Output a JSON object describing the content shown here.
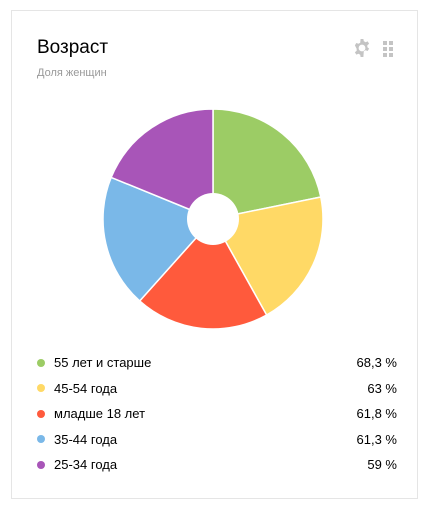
{
  "widget": {
    "title": "Возраст",
    "subtitle": "Доля женщин",
    "icons": {
      "settings": "gear-icon",
      "drag": "drag-handle-icon"
    },
    "icon_color": "#c4c4c4"
  },
  "chart_data": {
    "type": "pie",
    "style": "donut",
    "start_angle_deg": 0,
    "direction": "clockwise",
    "slices": [
      {
        "label": "55 лет и старше",
        "value": 68.3,
        "display": "68,3 %",
        "color": "#9ccc65"
      },
      {
        "label": "45-54 года",
        "value": 63,
        "display": "63 %",
        "color": "#ffd966"
      },
      {
        "label": "младше 18 лет",
        "value": 61.8,
        "display": "61,8 %",
        "color": "#ff5a3c"
      },
      {
        "label": "35-44 года",
        "value": 61.3,
        "display": "61,3 %",
        "color": "#7ab8e8"
      },
      {
        "label": "25-34 года",
        "value": 59,
        "display": "59 %",
        "color": "#a855b8"
      }
    ]
  }
}
